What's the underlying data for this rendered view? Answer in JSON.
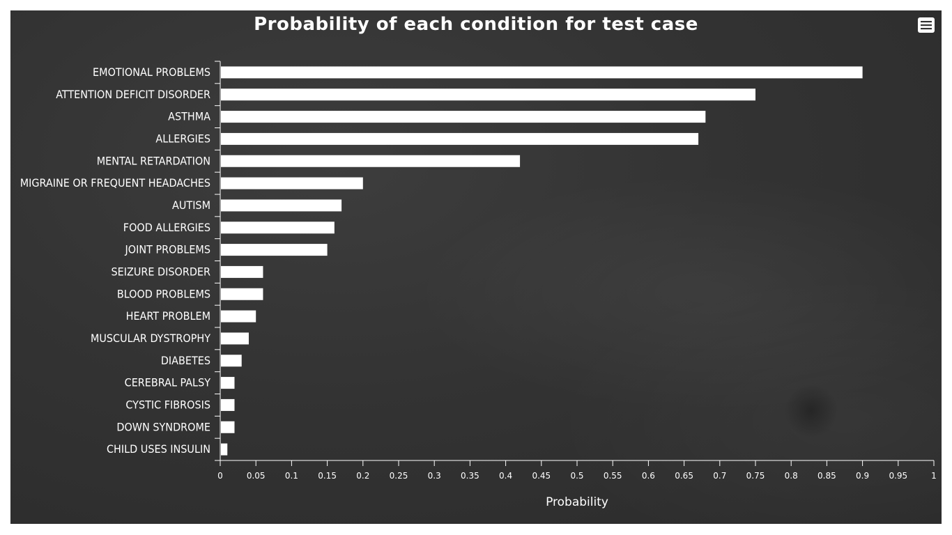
{
  "menu": {
    "icon": "hamburger-menu-icon"
  },
  "chart_data": {
    "type": "bar",
    "orientation": "horizontal",
    "title": "Probability of each condition for test case",
    "xlabel": "Probability",
    "ylabel": "",
    "xlim": [
      0,
      1
    ],
    "grid": false,
    "legend": "none",
    "bar_color": "#ffffff",
    "background_color": "#333333",
    "ticks": [
      "0",
      "0.05",
      "0.1",
      "0.15",
      "0.2",
      "0.25",
      "0.3",
      "0.35",
      "0.4",
      "0.45",
      "0.5",
      "0.55",
      "0.6",
      "0.65",
      "0.7",
      "0.75",
      "0.8",
      "0.85",
      "0.9",
      "0.95",
      "1"
    ],
    "categories": [
      "EMOTIONAL PROBLEMS",
      "ATTENTION DEFICIT DISORDER",
      "ASTHMA",
      "ALLERGIES",
      "MENTAL RETARDATION",
      "MIGRAINE OR FREQUENT HEADACHES",
      "AUTISM",
      "FOOD ALLERGIES",
      "JOINT PROBLEMS",
      "SEIZURE DISORDER",
      "BLOOD PROBLEMS",
      "HEART PROBLEM",
      "MUSCULAR DYSTROPHY",
      "DIABETES",
      "CEREBRAL PALSY",
      "CYSTIC FIBROSIS",
      "DOWN SYNDROME",
      "CHILD USES INSULIN"
    ],
    "values": [
      0.9,
      0.75,
      0.68,
      0.67,
      0.42,
      0.2,
      0.17,
      0.16,
      0.15,
      0.06,
      0.06,
      0.05,
      0.04,
      0.03,
      0.02,
      0.02,
      0.02,
      0.01
    ]
  }
}
